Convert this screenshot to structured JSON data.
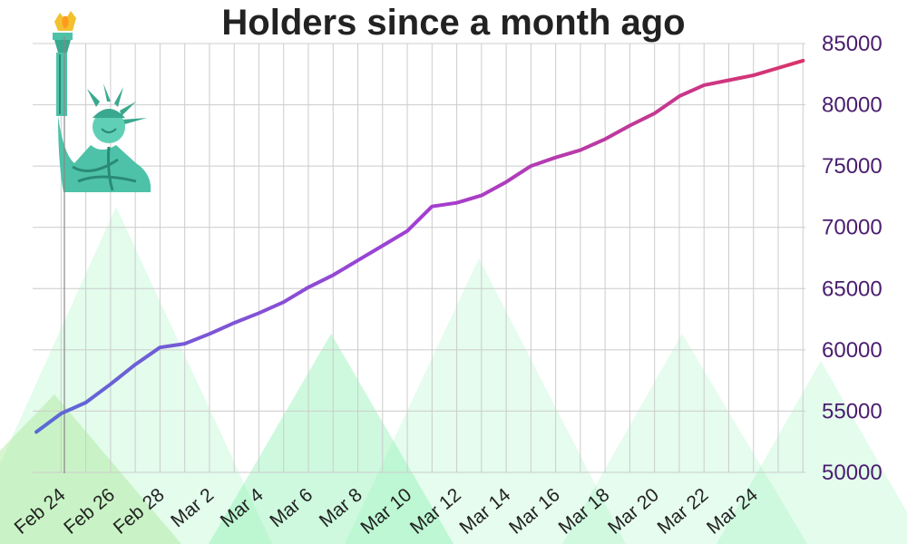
{
  "chart_data": {
    "type": "line",
    "title": "Holders since a month ago",
    "xlabel": "",
    "ylabel": "",
    "x_tick_labels": [
      "Feb 24",
      "Feb 26",
      "Feb 28",
      "Mar 2",
      "Mar 4",
      "Mar 6",
      "Mar 8",
      "Mar 10",
      "Mar 12",
      "Mar 14",
      "Mar 16",
      "Mar 18",
      "Mar 20",
      "Mar 22",
      "Mar 24"
    ],
    "y_ticks": [
      50000,
      55000,
      60000,
      65000,
      70000,
      75000,
      80000,
      85000
    ],
    "y_tick_labels": [
      "50000",
      "55000",
      "60000",
      "65000",
      "70000",
      "75000",
      "80000",
      "85000"
    ],
    "ylim": [
      50000,
      85000
    ],
    "y_axis_side": "right",
    "grid": true,
    "series": [
      {
        "name": "",
        "x": [
          "2024-02-23",
          "2024-02-24",
          "2024-02-25",
          "2024-02-26",
          "2024-02-27",
          "2024-02-28",
          "2024-02-29",
          "2024-03-01",
          "2024-03-02",
          "2024-03-03",
          "2024-03-04",
          "2024-03-05",
          "2024-03-06",
          "2024-03-07",
          "2024-03-08",
          "2024-03-09",
          "2024-03-10",
          "2024-03-11",
          "2024-03-12",
          "2024-03-13",
          "2024-03-14",
          "2024-03-15",
          "2024-03-16",
          "2024-03-17",
          "2024-03-18",
          "2024-03-19",
          "2024-03-20",
          "2024-03-21",
          "2024-03-22",
          "2024-03-23",
          "2024-03-24",
          "2024-03-25"
        ],
        "values": [
          53300,
          54800,
          55700,
          57200,
          58800,
          60200,
          60500,
          61300,
          62200,
          63000,
          63900,
          65100,
          66100,
          67300,
          68500,
          69700,
          71700,
          72000,
          72600,
          73700,
          75000,
          75700,
          76300,
          77200,
          78300,
          79300,
          80700,
          81600,
          82000,
          82400,
          83000,
          83600
        ]
      }
    ],
    "line_gradient": [
      "#5b6ad6",
      "#a23fd3",
      "#d9336a"
    ],
    "grid_color": "#cccccc",
    "mountain_color": "#7ff0a8",
    "decoration": "statue-of-liberty-icon"
  }
}
